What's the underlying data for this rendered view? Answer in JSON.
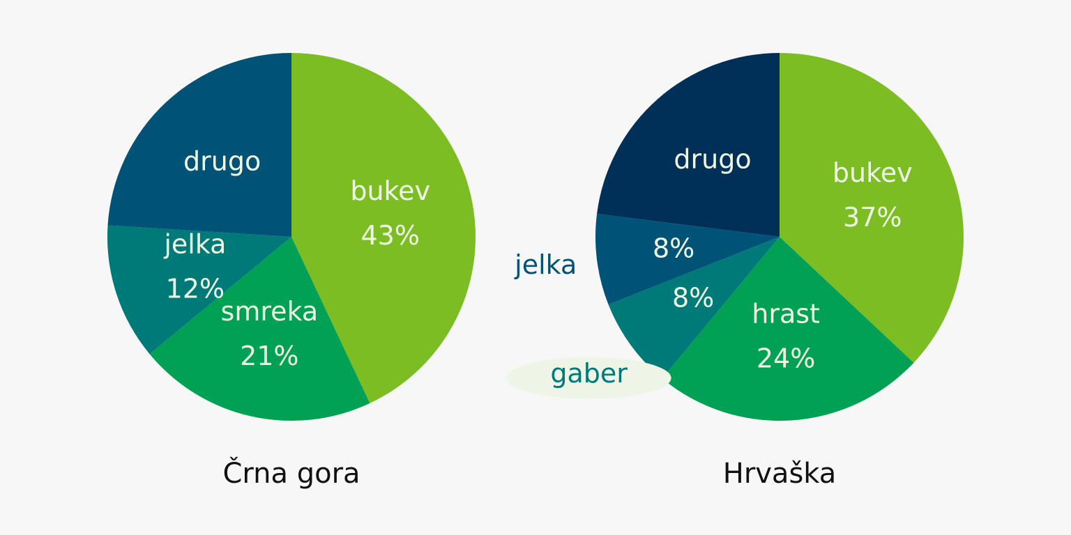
{
  "chart_data": [
    {
      "type": "pie",
      "title": "Črna gora",
      "categories": [
        "bukev",
        "smreka",
        "jelka",
        "drugo"
      ],
      "values": [
        43,
        21,
        12,
        24
      ],
      "value_labels": [
        "43%",
        "21%",
        "12%",
        null
      ],
      "colors": [
        "#7bbd23",
        "#00a154",
        "#007a78",
        "#005377"
      ]
    },
    {
      "type": "pie",
      "title": "Hrvaška",
      "categories": [
        "bukev",
        "hrast",
        "gaber",
        "jelka",
        "drugo"
      ],
      "values": [
        37,
        24,
        8,
        8,
        23
      ],
      "value_labels": [
        "37%",
        "24%",
        "8%",
        "8%",
        null
      ],
      "colors": [
        "#7bbd23",
        "#00a154",
        "#007a78",
        "#005377",
        "#003057"
      ]
    }
  ]
}
